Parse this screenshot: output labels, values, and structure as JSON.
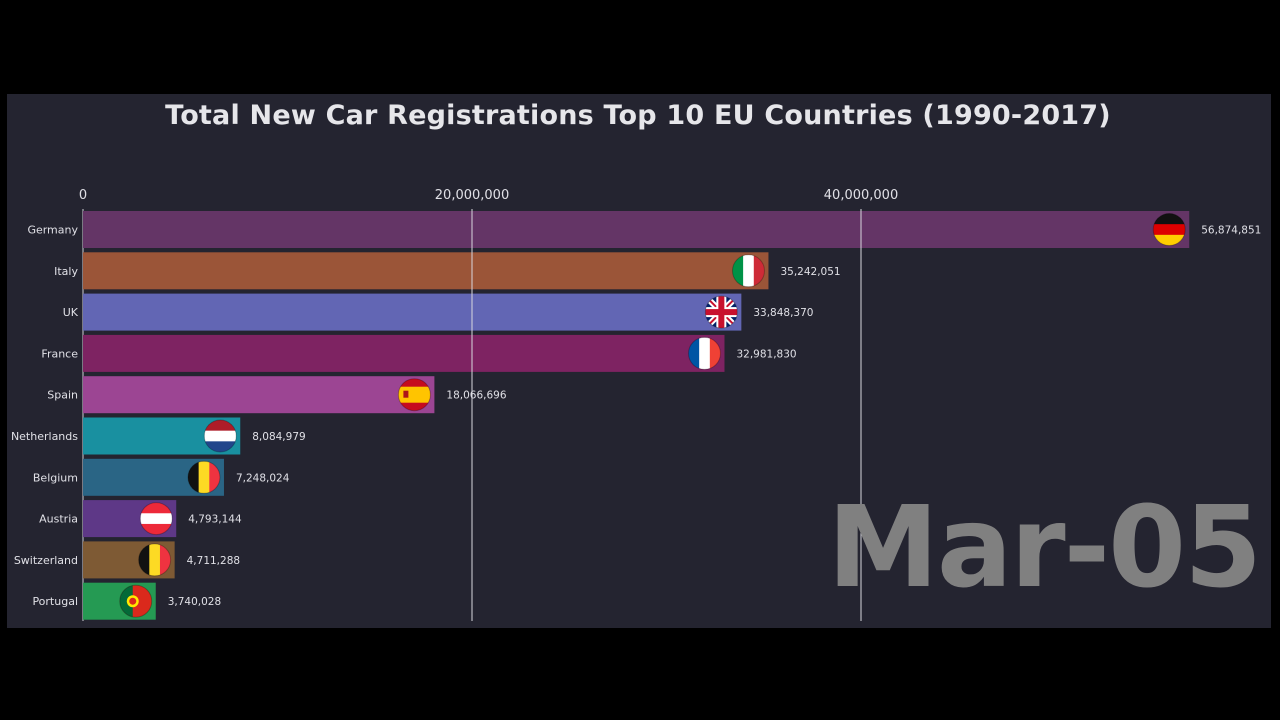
{
  "chart_data": {
    "type": "bar",
    "orientation": "horizontal",
    "title": "Total New Car Registrations Top 10 EU Countries (1990-2017)",
    "period_label": "Mar-05",
    "xlim": [
      0,
      57000000
    ],
    "x_ticks": [
      {
        "value": 0,
        "label": "0"
      },
      {
        "value": 20000000,
        "label": "20,000,000"
      },
      {
        "value": 40000000,
        "label": "40,000,000"
      }
    ],
    "grid": true,
    "categories": [
      "Germany",
      "Italy",
      "UK",
      "France",
      "Spain",
      "Netherlands",
      "Belgium",
      "Austria",
      "Switzerland",
      "Portugal"
    ],
    "values": [
      56874851,
      35242051,
      33848370,
      32981830,
      18066696,
      8084979,
      7248024,
      4793144,
      4711288,
      3740028
    ],
    "value_labels": [
      "56,874,851",
      "35,242,051",
      "33,848,370",
      "32,981,830",
      "18,066,696",
      "8,084,979",
      "7,248,024",
      "4,793,144",
      "4,711,288",
      "3,740,028"
    ],
    "bar_colors": [
      "#643566",
      "#9b5538",
      "#6266b4",
      "#7e2362",
      "#9c4593",
      "#1990a0",
      "#2a6585",
      "#5e3887",
      "#7e5a34",
      "#259a53"
    ],
    "flags": [
      "flag-germany-icon",
      "flag-italy-icon",
      "flag-uk-icon",
      "flag-france-icon",
      "flag-spain-icon",
      "flag-netherlands-icon",
      "flag-belgium-icon",
      "flag-austria-icon",
      "flag-belgium-icon",
      "flag-portugal-icon"
    ]
  }
}
